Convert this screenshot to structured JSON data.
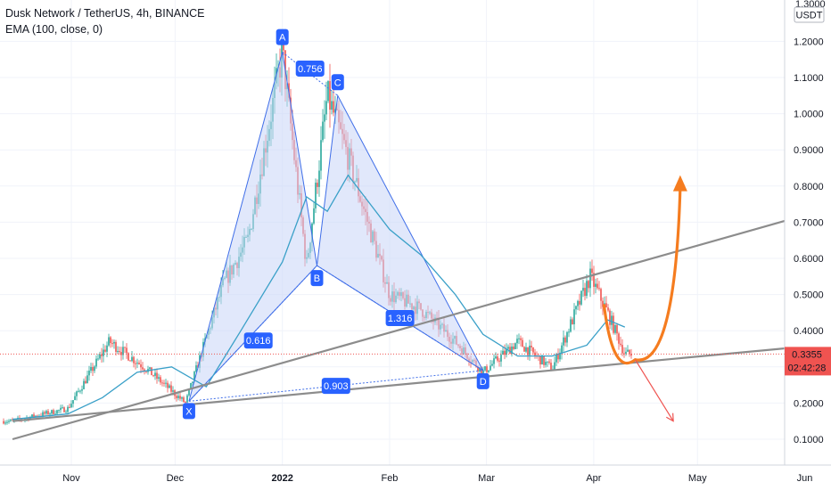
{
  "header": {
    "title": "Dusk Network / TetherUS, 4h, BINANCE",
    "indicator": "EMA (100, close, 0)"
  },
  "price_axis": {
    "currency": "USDT",
    "ticks": [
      "1.2000",
      "1.1000",
      "1.0000",
      "0.9000",
      "0.8000",
      "0.7000",
      "0.6000",
      "0.5000",
      "0.4000",
      "0.3000",
      "0.2000",
      "0.1000"
    ],
    "top_partial": "1.3000"
  },
  "time_axis": {
    "ticks": [
      "Nov",
      "Dec",
      "2022",
      "Feb",
      "Mar",
      "Apr",
      "May",
      "Jun"
    ]
  },
  "last_price": {
    "value": "0.3355",
    "countdown": "02:42:28",
    "color": "#ef5350"
  },
  "colors": {
    "candle_up": "#26a69a",
    "candle_down": "#ef5350",
    "ema": "#3aa0c8",
    "pattern_fill": "#c8d6f8",
    "pattern_edge": "#3f6ee8",
    "trend_line": "#8c8c8c",
    "orange_arrow": "#f57c1f",
    "red_arrow": "#ef5350",
    "label_bg": "#2962ff"
  },
  "chart_data": {
    "type": "line",
    "title": "Dusk Network / TetherUS, 4h, BINANCE",
    "xlabel": "",
    "ylabel": "",
    "ylim": [
      0.04,
      1.32
    ],
    "x_ticks": [
      "Nov",
      "Dec",
      "2022",
      "Feb",
      "Mar",
      "Apr",
      "May",
      "Jun"
    ],
    "series": [
      {
        "name": "EMA (100, close, 0)",
        "x": [
          "2021-10-15",
          "2021-10-31",
          "2021-11-10",
          "2021-11-20",
          "2021-11-30",
          "2021-12-10",
          "2021-12-20",
          "2022-01-01",
          "2022-01-08",
          "2022-01-14",
          "2022-01-20",
          "2022-02-01",
          "2022-02-10",
          "2022-02-20",
          "2022-02-28",
          "2022-03-10",
          "2022-03-20",
          "2022-03-30",
          "2022-04-05",
          "2022-04-10"
        ],
        "values": [
          0.155,
          0.17,
          0.215,
          0.285,
          0.3,
          0.245,
          0.4,
          0.59,
          0.77,
          0.73,
          0.83,
          0.68,
          0.61,
          0.5,
          0.39,
          0.33,
          0.33,
          0.36,
          0.43,
          0.41
        ]
      },
      {
        "name": "price",
        "x": [
          "2021-10-15",
          "2021-10-31",
          "2021-11-12",
          "2021-11-22",
          "2021-12-04",
          "2021-12-15",
          "2021-12-22",
          "2022-01-01",
          "2022-01-08",
          "2022-01-14",
          "2022-01-20",
          "2022-02-01",
          "2022-02-10",
          "2022-02-20",
          "2022-02-28",
          "2022-03-10",
          "2022-03-20",
          "2022-03-31",
          "2022-04-05",
          "2022-04-10"
        ],
        "values": [
          0.15,
          0.185,
          0.37,
          0.3,
          0.2,
          0.53,
          0.65,
          1.17,
          0.58,
          1.05,
          0.88,
          0.5,
          0.46,
          0.37,
          0.285,
          0.37,
          0.295,
          0.55,
          0.45,
          0.3355
        ]
      }
    ],
    "harmonic_pattern": {
      "points": [
        {
          "label": "X",
          "date": "2021-12-05",
          "price": 0.205
        },
        {
          "label": "A",
          "date": "2022-01-01",
          "price": 1.17
        },
        {
          "label": "B",
          "date": "2022-01-11",
          "price": 0.58
        },
        {
          "label": "C",
          "date": "2022-01-17",
          "price": 1.05
        },
        {
          "label": "D",
          "date": "2022-02-28",
          "price": 0.29
        }
      ],
      "ratios": [
        {
          "value": "0.756",
          "between": "A-C"
        },
        {
          "value": "0.616",
          "between": "X-B"
        },
        {
          "value": "1.316",
          "between": "B-D"
        },
        {
          "value": "0.903",
          "between": "X-D"
        }
      ]
    },
    "trend_lines": [
      {
        "name": "upper",
        "from": {
          "date": "2021-10-15",
          "price": 0.1
        },
        "to": {
          "date": "2022-06-05",
          "price": 0.73
        }
      },
      {
        "name": "lower",
        "from": {
          "date": "2021-10-15",
          "price": 0.15
        },
        "to": {
          "date": "2022-06-05",
          "price": 0.36
        }
      }
    ],
    "projections": [
      {
        "name": "bullish",
        "color": "#f57c1f",
        "path": [
          {
            "date": "2022-04-04",
            "price": 0.47
          },
          {
            "date": "2022-04-13",
            "price": 0.32
          },
          {
            "date": "2022-04-26",
            "price": 0.82
          }
        ]
      },
      {
        "name": "bearish",
        "color": "#ef5350",
        "path": [
          {
            "date": "2022-04-13",
            "price": 0.32
          },
          {
            "date": "2022-04-24",
            "price": 0.15
          }
        ]
      }
    ],
    "last_price": 0.3355
  }
}
